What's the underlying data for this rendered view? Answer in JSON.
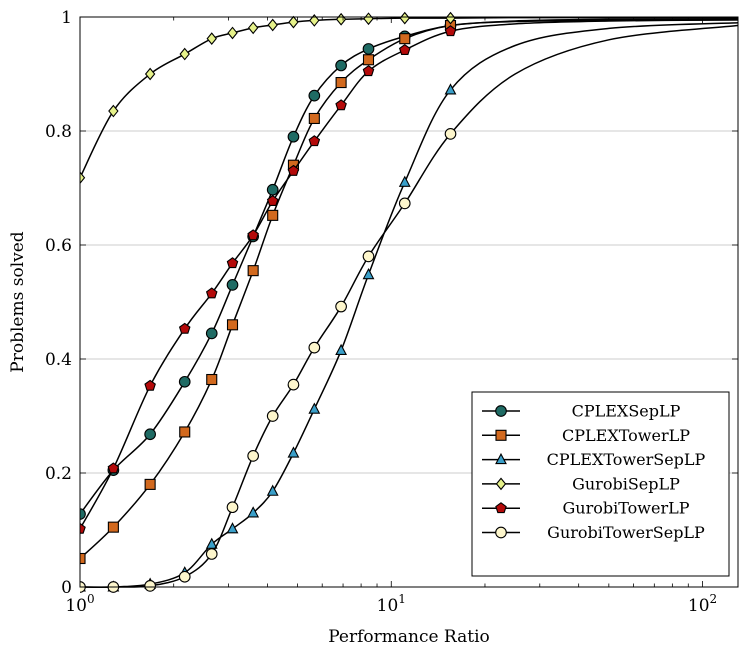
{
  "chart_data": {
    "type": "line",
    "x_scale": "log",
    "xlabel": "Performance Ratio",
    "ylabel": "Problems solved",
    "xlim": [
      1,
      130
    ],
    "ylim": [
      0,
      1
    ],
    "x_ticks": [
      {
        "value": 1,
        "base": "10",
        "exp": "0"
      },
      {
        "value": 10,
        "base": "10",
        "exp": "1"
      },
      {
        "value": 100,
        "base": "10",
        "exp": "2"
      }
    ],
    "y_ticks": [
      {
        "value": 0,
        "label": "0"
      },
      {
        "value": 0.2,
        "label": "0.2"
      },
      {
        "value": 0.4,
        "label": "0.4"
      },
      {
        "value": 0.6,
        "label": "0.6"
      },
      {
        "value": 0.8,
        "label": "0.8"
      },
      {
        "value": 1,
        "label": "1"
      }
    ],
    "grid": "horizontal",
    "legend_position": "bottom-right",
    "series": [
      {
        "name": "CPLEXSepLP",
        "marker": "circle",
        "color": "#1f6b64",
        "x": [
          1,
          1.28,
          1.68,
          2.17,
          2.65,
          3.09,
          3.6,
          4.16,
          4.85,
          5.66,
          6.9,
          8.45,
          11.05,
          15.5,
          25,
          50,
          130
        ],
        "y": [
          0.128,
          0.205,
          0.268,
          0.36,
          0.445,
          0.53,
          0.615,
          0.697,
          0.79,
          0.862,
          0.915,
          0.944,
          0.966,
          0.985,
          0.993,
          0.996,
          0.997
        ]
      },
      {
        "name": "CPLEXTowerLP",
        "marker": "square",
        "color": "#d2691e",
        "x": [
          1,
          1.28,
          1.68,
          2.17,
          2.65,
          3.09,
          3.6,
          4.16,
          4.85,
          5.66,
          6.9,
          8.45,
          11.05,
          15.5,
          25,
          50,
          130
        ],
        "y": [
          0.05,
          0.105,
          0.18,
          0.272,
          0.364,
          0.46,
          0.555,
          0.652,
          0.74,
          0.822,
          0.885,
          0.925,
          0.962,
          0.985,
          0.992,
          0.994,
          0.995
        ]
      },
      {
        "name": "CPLEXTowerSepLP",
        "marker": "triangle",
        "color": "#3a9fc9",
        "x": [
          1,
          1.28,
          1.68,
          2.17,
          2.65,
          3.09,
          3.6,
          4.16,
          4.85,
          5.66,
          6.9,
          8.45,
          11.05,
          15.5,
          25,
          50,
          130
        ],
        "y": [
          0,
          0,
          0.005,
          0.025,
          0.075,
          0.102,
          0.13,
          0.168,
          0.235,
          0.312,
          0.415,
          0.548,
          0.71,
          0.872,
          0.95,
          0.98,
          0.99
        ]
      },
      {
        "name": "GurobiSepLP",
        "marker": "diamond",
        "color": "#e6f28a",
        "x": [
          1,
          1.28,
          1.68,
          2.17,
          2.65,
          3.09,
          3.6,
          4.16,
          4.85,
          5.66,
          6.9,
          8.45,
          11.05,
          15.5,
          25,
          50,
          130
        ],
        "y": [
          0.718,
          0.835,
          0.9,
          0.935,
          0.962,
          0.972,
          0.981,
          0.986,
          0.991,
          0.994,
          0.996,
          0.997,
          0.998,
          0.998,
          0.999,
          0.999,
          0.999
        ]
      },
      {
        "name": "GurobiTowerLP",
        "marker": "pentagon",
        "color": "#b40a0a",
        "x": [
          1,
          1.28,
          1.68,
          2.17,
          2.65,
          3.09,
          3.6,
          4.16,
          4.85,
          5.66,
          6.9,
          8.45,
          11.05,
          15.5,
          25,
          50,
          130
        ],
        "y": [
          0.102,
          0.208,
          0.353,
          0.453,
          0.515,
          0.568,
          0.617,
          0.677,
          0.73,
          0.782,
          0.845,
          0.905,
          0.942,
          0.975,
          0.988,
          0.993,
          0.995
        ]
      },
      {
        "name": "GurobiTowerSepLP",
        "marker": "circle",
        "color": "#fdf6cc",
        "x": [
          1,
          1.28,
          1.68,
          2.17,
          2.65,
          3.09,
          3.6,
          4.16,
          4.85,
          5.66,
          6.9,
          8.45,
          11.05,
          15.5,
          25,
          50,
          130
        ],
        "y": [
          0,
          0,
          0.002,
          0.018,
          0.058,
          0.14,
          0.23,
          0.3,
          0.355,
          0.42,
          0.492,
          0.58,
          0.673,
          0.795,
          0.9,
          0.96,
          0.985
        ]
      }
    ]
  }
}
